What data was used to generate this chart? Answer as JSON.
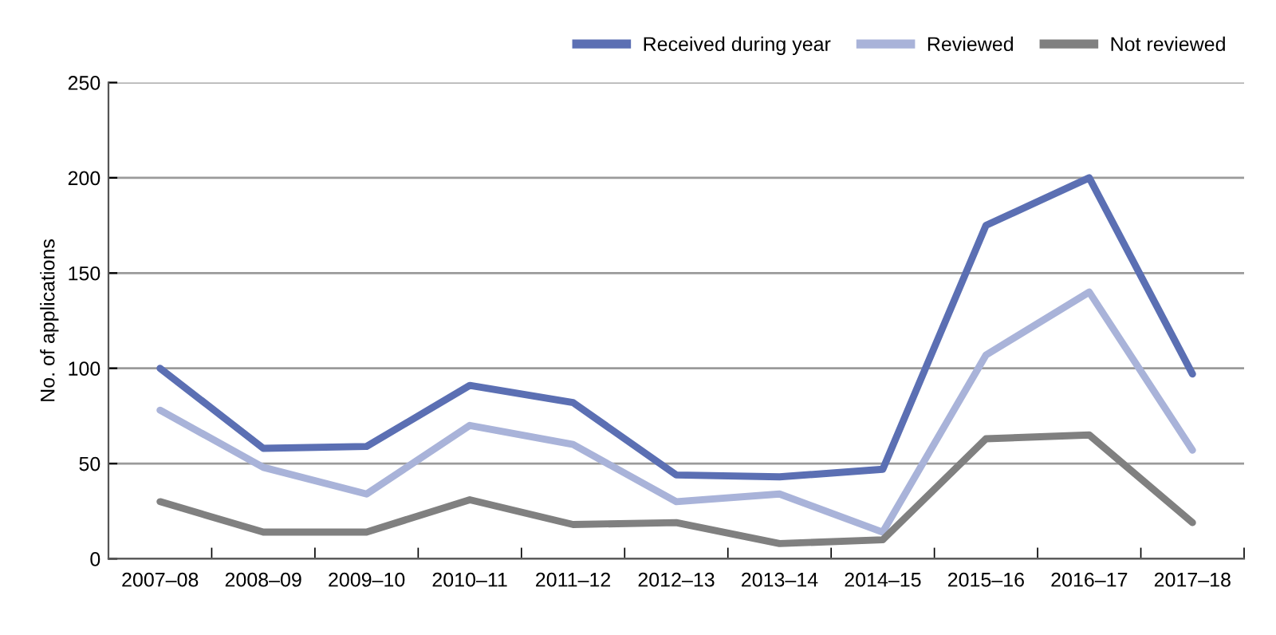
{
  "chart_data": {
    "type": "line",
    "ylabel": "No. of applications",
    "categories": [
      "2007–08",
      "2008–09",
      "2009–10",
      "2010–11",
      "2011–12",
      "2012–13",
      "2013–14",
      "2014–15",
      "2015–16",
      "2016–17",
      "2017–18"
    ],
    "series": [
      {
        "name": "Received during year",
        "color": "#5b6fb3",
        "values": [
          100,
          58,
          59,
          91,
          82,
          44,
          43,
          47,
          175,
          200,
          97
        ]
      },
      {
        "name": "Reviewed",
        "color": "#a9b3d9",
        "values": [
          78,
          48,
          34,
          70,
          60,
          30,
          34,
          14,
          107,
          140,
          57
        ]
      },
      {
        "name": "Not reviewed",
        "color": "#808080",
        "values": [
          30,
          14,
          14,
          31,
          18,
          19,
          8,
          10,
          63,
          65,
          19
        ]
      }
    ],
    "ylim": [
      0,
      250
    ],
    "yticks": [
      0,
      50,
      100,
      150,
      200,
      250
    ],
    "grid": "y",
    "legend": "top right",
    "marker": "none",
    "line_style": "solid"
  }
}
